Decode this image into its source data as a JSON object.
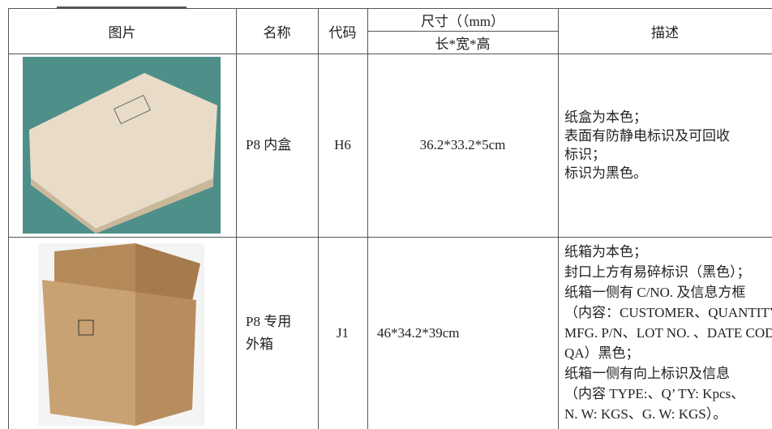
{
  "table": {
    "header": {
      "picture": "图片",
      "name": "名称",
      "code": "代码",
      "size": "尺寸（（mm）",
      "size_sub": "长*宽*高",
      "description": "描述"
    },
    "rows": [
      {
        "name": [
          "P8 内盒"
        ],
        "code": "H6",
        "size": "36.2*33.2*5cm",
        "description": [
          "纸盒为本色；",
          "表面有防静电标识及可回收",
          "标识；",
          "标识为黑色。"
        ]
      },
      {
        "name": [
          "P8 专用",
          "外箱"
        ],
        "code": "J1",
        "size": "46*34.2*39cm",
        "description": [
          "纸箱为本色；",
          "封口上方有易碎标识（黑色）；",
          "纸箱一侧有 C/NO. 及信息方框",
          "（内容：CUSTOMER、QUANTITY、",
          "MFG. P/N、LOT NO. 、DATE CODE、",
          "QA）黑色；",
          "纸箱一侧有向上标识及信息",
          "（内容 TYPE:、Q’ TY: Kpcs、",
          "N. W: KGS、G. W: KGS）。"
        ]
      }
    ]
  }
}
